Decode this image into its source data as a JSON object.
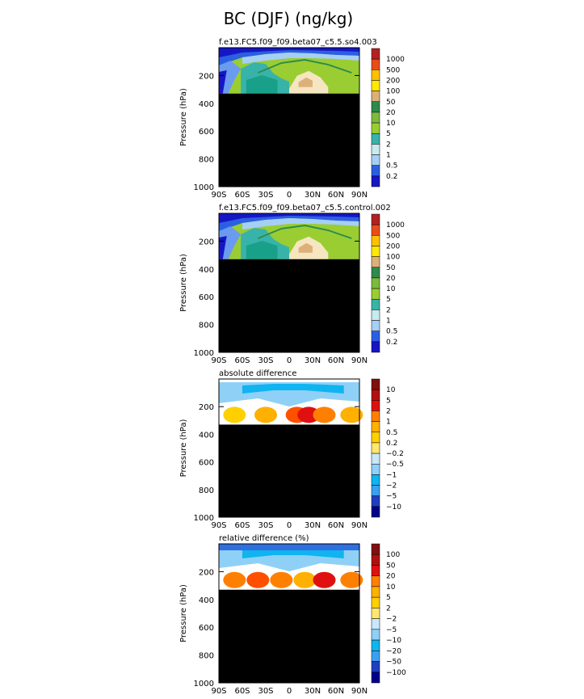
{
  "figure_title": "BC (DJF) (ng/kg)",
  "colors": {
    "bc_levels": [
      "#1616c4",
      "#2b5fe3",
      "#6a9bef",
      "#a6cff5",
      "#c7ebee",
      "#38b3a9",
      "#18a188",
      "#9acd32",
      "#7cba3f",
      "#2e8b4b",
      "#f5e6c0",
      "#ddb07a",
      "#ffe800",
      "#ffc000",
      "#ff8c00",
      "#e84d1a",
      "#b22222"
    ],
    "diff_levels": [
      "#00008b",
      "#1f3fbf",
      "#2f6fdf",
      "#3aa0ef",
      "#0fb4f0",
      "#8fd0f7",
      "#c8e8fb",
      "#ffffff",
      "#ffe870",
      "#ffd000",
      "#ffb000",
      "#ff8000",
      "#ff5000",
      "#e01010",
      "#b01010",
      "#7f1010"
    ],
    "missing": "#000000"
  },
  "chart_data": [
    {
      "type": "heatmap",
      "title": "f.e13.FC5.f09_f09.beta07_c5.5.so4.003",
      "xlabel": "",
      "ylabel": "Pressure (hPa)",
      "x_ticks": [
        "90S",
        "60S",
        "30S",
        "0",
        "30N",
        "60N",
        "90N"
      ],
      "y_ticks": [
        "200",
        "400",
        "600",
        "800",
        "1000"
      ],
      "xlim": [
        -90,
        90
      ],
      "ylim": [
        1000,
        0
      ],
      "colorbar": [
        "1000",
        "500",
        "200",
        "100",
        "50",
        "20",
        "10",
        "5",
        "2",
        "1",
        "0.5",
        "0.2"
      ],
      "masked_below_hPa": 330
    },
    {
      "type": "heatmap",
      "title": "f.e13.FC5.f09_f09.beta07_c5.5.control.002",
      "xlabel": "",
      "ylabel": "Pressure (hPa)",
      "x_ticks": [
        "90S",
        "60S",
        "30S",
        "0",
        "30N",
        "60N",
        "90N"
      ],
      "y_ticks": [
        "200",
        "400",
        "600",
        "800",
        "1000"
      ],
      "xlim": [
        -90,
        90
      ],
      "ylim": [
        1000,
        0
      ],
      "colorbar": [
        "1000",
        "500",
        "200",
        "100",
        "50",
        "20",
        "10",
        "5",
        "2",
        "1",
        "0.5",
        "0.2"
      ],
      "masked_below_hPa": 330
    },
    {
      "type": "heatmap",
      "title": "absolute difference",
      "xlabel": "",
      "ylabel": "Pressure (hPa)",
      "x_ticks": [
        "90S",
        "60S",
        "30S",
        "0",
        "30N",
        "60N",
        "90N"
      ],
      "y_ticks": [
        "200",
        "400",
        "600",
        "800",
        "1000"
      ],
      "xlim": [
        -90,
        90
      ],
      "ylim": [
        1000,
        0
      ],
      "colorbar": [
        "10",
        "5",
        "2",
        "1",
        "0.5",
        "0.2",
        "−0.2",
        "−0.5",
        "−1",
        "−2",
        "−5",
        "−10"
      ],
      "masked_below_hPa": 330
    },
    {
      "type": "heatmap",
      "title": "relative difference (%)",
      "xlabel": "",
      "ylabel": "Pressure (hPa)",
      "x_ticks": [
        "90S",
        "60S",
        "30S",
        "0",
        "30N",
        "60N",
        "90N"
      ],
      "y_ticks": [
        "200",
        "400",
        "600",
        "800",
        "1000"
      ],
      "xlim": [
        -90,
        90
      ],
      "ylim": [
        1000,
        0
      ],
      "colorbar": [
        "100",
        "50",
        "20",
        "10",
        "5",
        "2",
        "−2",
        "−5",
        "−10",
        "−20",
        "−50",
        "−100"
      ],
      "masked_below_hPa": 330
    }
  ]
}
